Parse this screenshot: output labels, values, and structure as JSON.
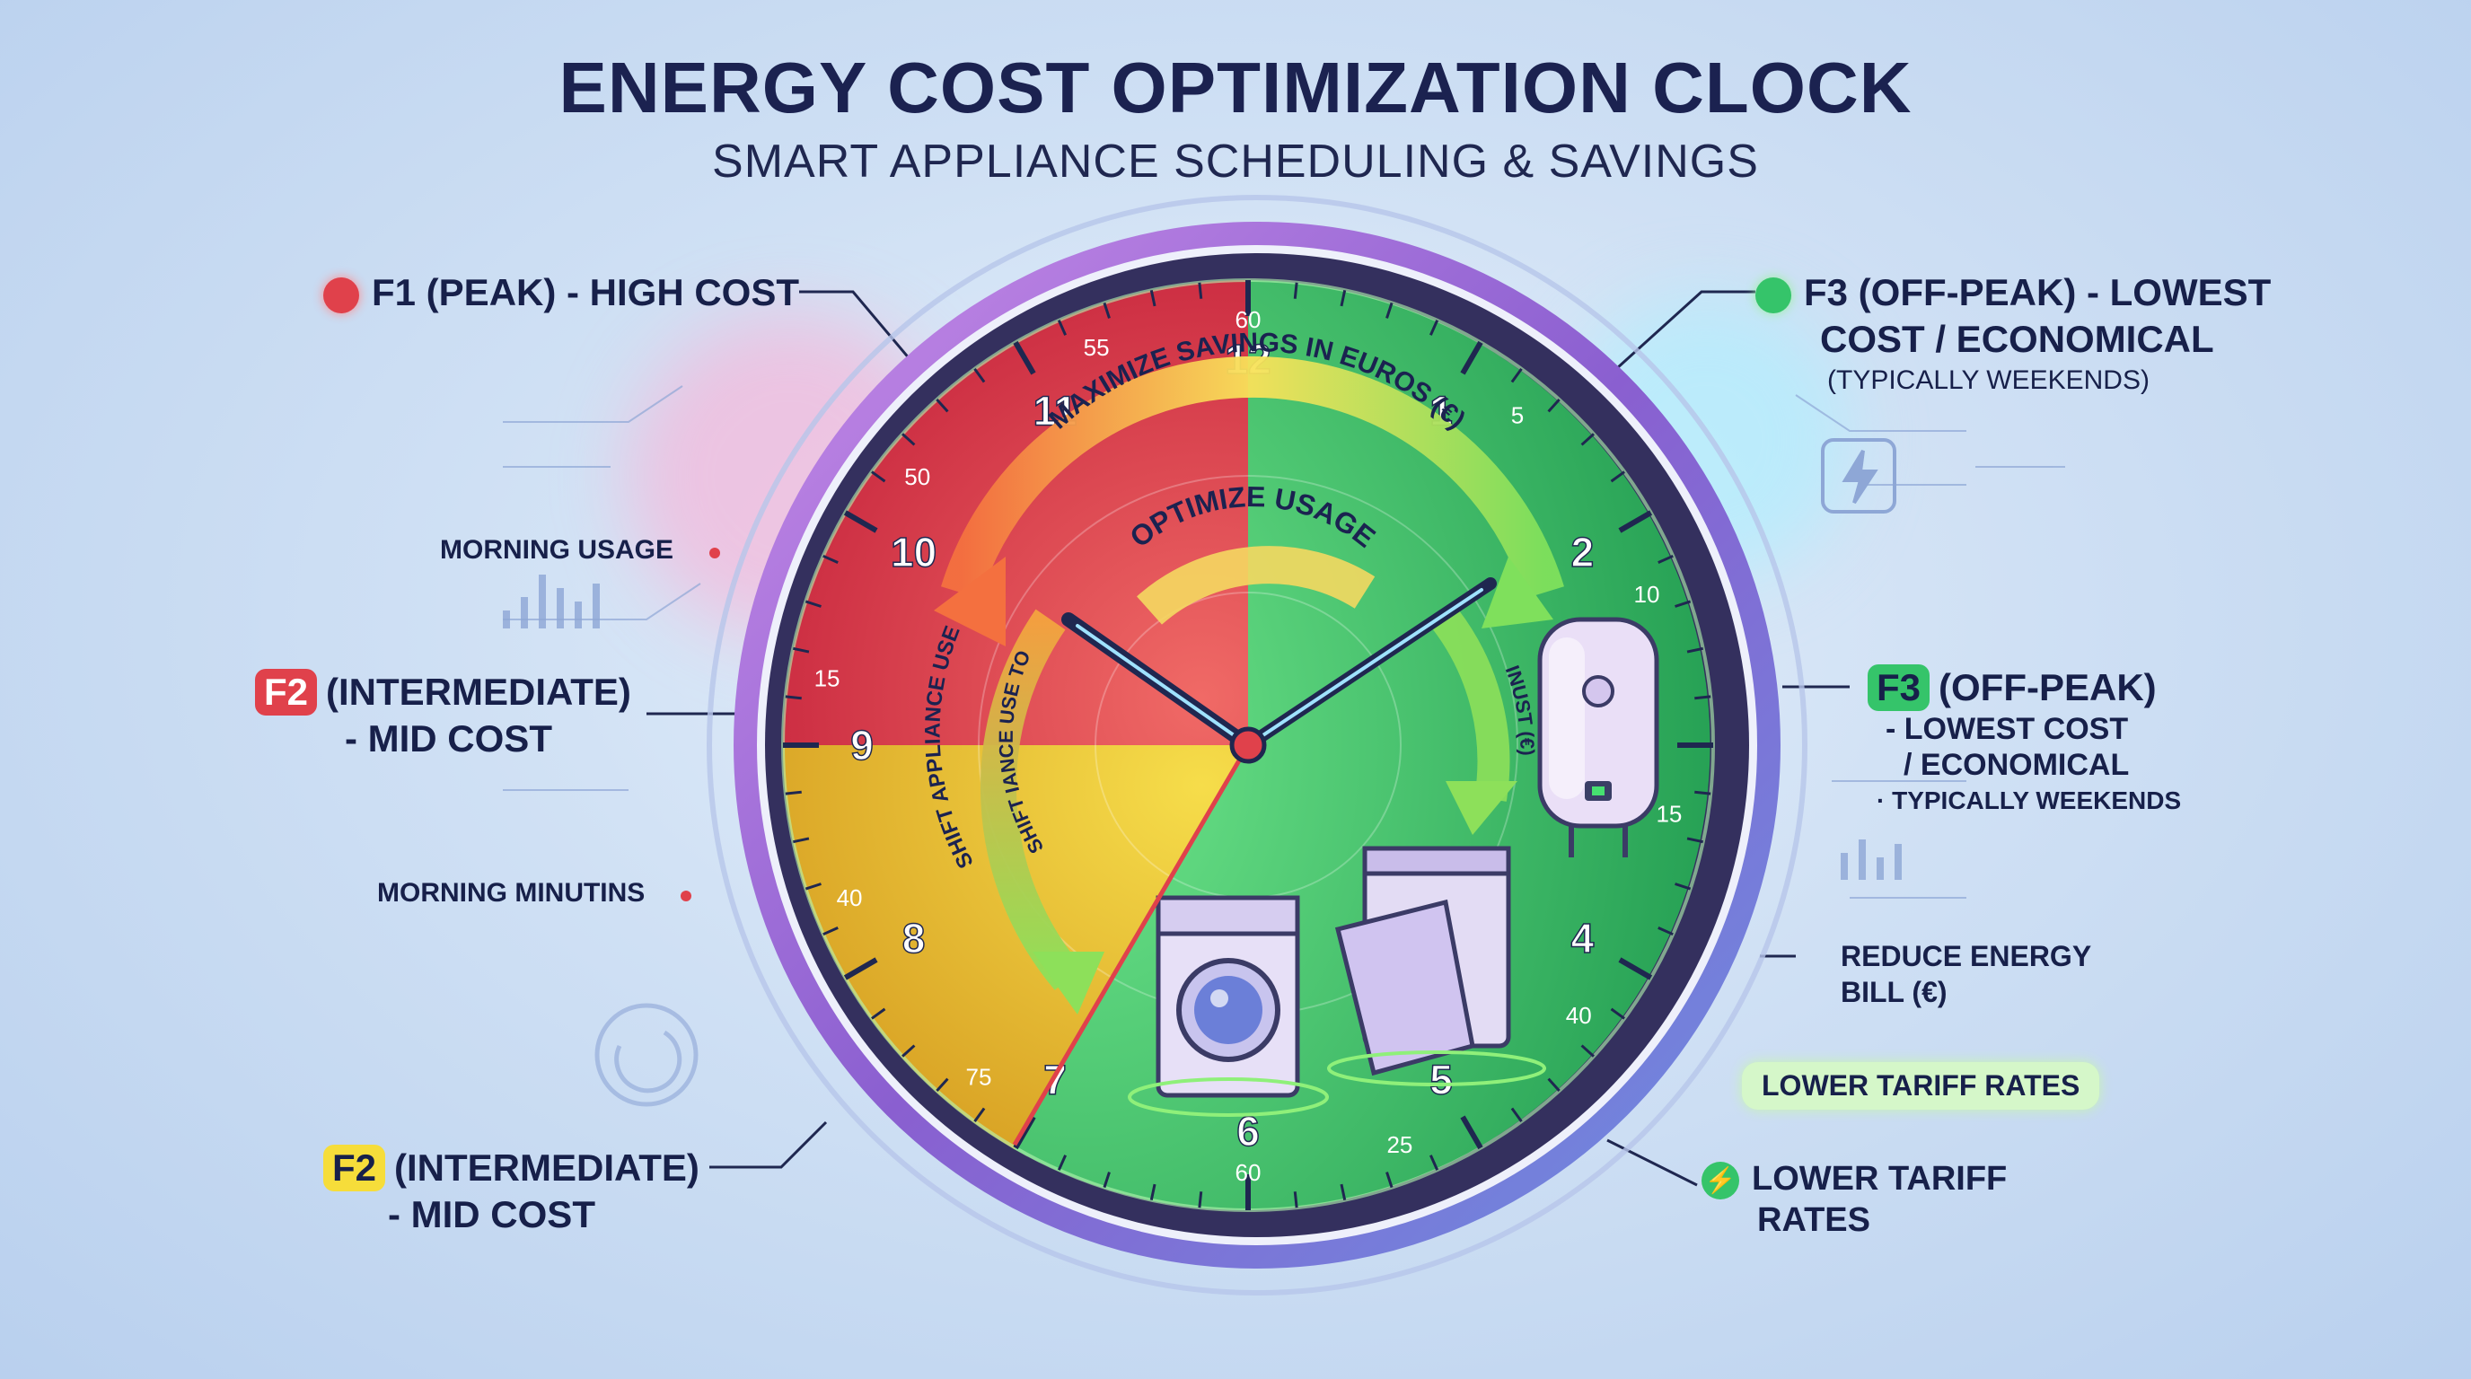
{
  "title": "ENERGY COST OPTIMIZATION CLOCK",
  "subtitle": "SMART APPLIANCE SCHEDULING & SAVINGS",
  "left_labels": {
    "f1": "F1 (PEAK) - HIGH COST",
    "morning_usage": "MORNING USAGE",
    "f2_top_tag": "F2",
    "f2_top_line1": "(INTERMEDIATE)",
    "f2_top_line2": "- MID COST",
    "morning_minutins": "MORNING MINUTINS",
    "f2_bottom_tag": "F2",
    "f2_bottom_line1": "(INTERMEDIATE)",
    "f2_bottom_line2": "- MID COST"
  },
  "right_labels": {
    "f3_top_line1": "F3 (OFF-PEAK) - LOWEST",
    "f3_top_line2": "COST / ECONOMICAL",
    "f3_top_note": "(TYPICALLY WEEKENDS)",
    "f3_mid_tag": "F3",
    "f3_mid_line1": "(OFF-PEAK)",
    "f3_mid_line2": "- LOWEST COST",
    "f3_mid_line3": "/ ECONOMICAL",
    "f3_mid_note": "· TYPICALLY WEEKENDS",
    "reduce_line1": "REDUCE ENERGY",
    "reduce_line2": "BILL (€)",
    "lower_pill": "LOWER TARIFF RATES",
    "lower_line1": "LOWER TARIFF",
    "lower_line2": "RATES"
  },
  "clock": {
    "hour_numbers": [
      "12",
      "1",
      "2",
      "3",
      "4",
      "5",
      "6",
      "7",
      "8",
      "9",
      "10",
      "11"
    ],
    "minute_labels": [
      "60",
      "5",
      "10",
      "15",
      "40",
      "25",
      "60",
      "75",
      "40",
      "15",
      "50",
      "55"
    ],
    "arc_top": "MAXIMIZE SAVINGS IN EUROS (€)",
    "arc_inner": "OPTIMIZE USAGE",
    "arc_left_outer": "SHIFT APPLIANCE USE",
    "arc_left_inner": "SHIFT IANCE USE TO",
    "arc_right": "INUST (€)",
    "zones": [
      {
        "name": "F1",
        "color": "#e0414b"
      },
      {
        "name": "F2",
        "color": "#f0c52a"
      },
      {
        "name": "F3",
        "color": "#35c46a"
      }
    ]
  },
  "icons": [
    "washing-machine-icon",
    "dishwasher-icon",
    "water-heater-icon",
    "lightning-icon"
  ]
}
